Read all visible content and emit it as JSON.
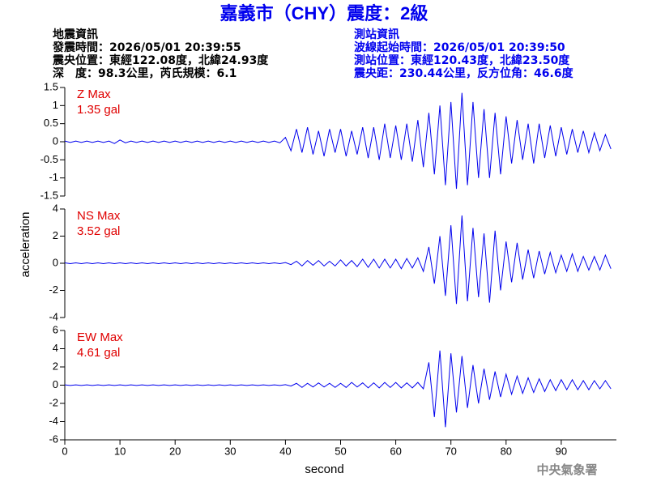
{
  "header": {
    "title": "嘉義市（CHY）震度：2級",
    "left_lines": [
      "地震資訊",
      "發震時間：2026/05/01 20:39:55",
      "震央位置：東經122.08度，北緯24.93度",
      "深　度：98.3公里，芮氏規模：6.1"
    ],
    "right_lines": [
      "測站資訊",
      "波線起始時間：2026/05/01 20:39:50",
      "測站位置：東經120.43度，北緯23.50度",
      "震央距：230.44公里，反方位角：46.6度"
    ]
  },
  "y_label": "acceleration",
  "footer": "中央氣象署",
  "chart_data": [
    {
      "type": "line",
      "annotations": [
        "Z Max",
        "1.35 gal"
      ],
      "xlim": [
        0,
        100
      ],
      "ylim": [
        -1.5,
        1.5
      ],
      "yticks": [
        1.5,
        1,
        0.5,
        0,
        -0.5,
        -1,
        -1.5
      ],
      "x": [
        0,
        1,
        2,
        3,
        4,
        5,
        6,
        7,
        8,
        9,
        10,
        11,
        12,
        13,
        14,
        15,
        16,
        17,
        18,
        19,
        20,
        21,
        22,
        23,
        24,
        25,
        26,
        27,
        28,
        29,
        30,
        31,
        32,
        33,
        34,
        35,
        36,
        37,
        38,
        39,
        40,
        41,
        42,
        43,
        44,
        45,
        46,
        47,
        48,
        49,
        50,
        51,
        52,
        53,
        54,
        55,
        56,
        57,
        58,
        59,
        60,
        61,
        62,
        63,
        64,
        65,
        66,
        67,
        68,
        69,
        70,
        71,
        72,
        73,
        74,
        75,
        76,
        77,
        78,
        79,
        80,
        81,
        82,
        83,
        84,
        85,
        86,
        87,
        88,
        89,
        90,
        91,
        92,
        93,
        94,
        95,
        96,
        97,
        98,
        99
      ],
      "series": [
        {
          "color": "#0000ee",
          "values": [
            0.02,
            -0.02,
            0.02,
            -0.02,
            0.02,
            -0.02,
            0.02,
            -0.02,
            0.02,
            -0.05,
            0.05,
            -0.03,
            0.02,
            -0.02,
            0.02,
            -0.02,
            0.02,
            -0.02,
            0.02,
            -0.02,
            0.02,
            -0.02,
            0.02,
            -0.02,
            0.02,
            -0.02,
            0.02,
            -0.02,
            0.02,
            -0.02,
            0.02,
            -0.02,
            0.02,
            -0.02,
            0.02,
            -0.02,
            0.02,
            -0.02,
            0.02,
            -0.03,
            0.12,
            -0.25,
            0.35,
            -0.3,
            0.4,
            -0.35,
            0.3,
            -0.4,
            0.35,
            -0.3,
            0.35,
            -0.4,
            0.3,
            -0.35,
            0.4,
            -0.45,
            0.4,
            -0.5,
            0.5,
            -0.45,
            0.45,
            -0.5,
            0.5,
            -0.55,
            0.6,
            -0.7,
            0.8,
            -0.9,
            1.0,
            -1.2,
            1.1,
            -1.3,
            1.35,
            -1.2,
            1.1,
            -1.0,
            0.9,
            -1.0,
            0.8,
            -0.9,
            0.7,
            -0.6,
            0.6,
            -0.5,
            0.5,
            -0.6,
            0.5,
            -0.45,
            0.45,
            -0.4,
            0.4,
            -0.35,
            0.35,
            -0.3,
            0.3,
            -0.3,
            0.25,
            -0.25,
            0.2,
            -0.2
          ]
        }
      ]
    },
    {
      "type": "line",
      "annotations": [
        "NS Max",
        "3.52 gal"
      ],
      "xlim": [
        0,
        100
      ],
      "ylim": [
        -4,
        4
      ],
      "yticks": [
        4,
        2,
        0,
        -2,
        -4
      ],
      "x": [
        0,
        1,
        2,
        3,
        4,
        5,
        6,
        7,
        8,
        9,
        10,
        11,
        12,
        13,
        14,
        15,
        16,
        17,
        18,
        19,
        20,
        21,
        22,
        23,
        24,
        25,
        26,
        27,
        28,
        29,
        30,
        31,
        32,
        33,
        34,
        35,
        36,
        37,
        38,
        39,
        40,
        41,
        42,
        43,
        44,
        45,
        46,
        47,
        48,
        49,
        50,
        51,
        52,
        53,
        54,
        55,
        56,
        57,
        58,
        59,
        60,
        61,
        62,
        63,
        64,
        65,
        66,
        67,
        68,
        69,
        70,
        71,
        72,
        73,
        74,
        75,
        76,
        77,
        78,
        79,
        80,
        81,
        82,
        83,
        84,
        85,
        86,
        87,
        88,
        89,
        90,
        91,
        92,
        93,
        94,
        95,
        96,
        97,
        98,
        99
      ],
      "series": [
        {
          "color": "#0000ee",
          "values": [
            0.03,
            -0.03,
            0.03,
            -0.03,
            0.03,
            -0.03,
            0.03,
            -0.03,
            0.03,
            -0.03,
            0.03,
            -0.03,
            0.03,
            -0.03,
            0.03,
            -0.03,
            0.03,
            -0.03,
            0.03,
            -0.03,
            0.03,
            -0.03,
            0.03,
            -0.03,
            0.03,
            -0.03,
            0.03,
            -0.03,
            0.03,
            -0.03,
            0.03,
            -0.03,
            0.03,
            -0.03,
            0.03,
            -0.03,
            0.03,
            -0.03,
            0.03,
            -0.03,
            0.05,
            -0.1,
            0.15,
            -0.2,
            0.2,
            -0.15,
            0.2,
            -0.2,
            0.15,
            -0.2,
            0.25,
            -0.2,
            0.2,
            -0.25,
            0.3,
            -0.3,
            0.3,
            -0.35,
            0.3,
            -0.35,
            0.3,
            -0.4,
            0.35,
            -0.35,
            0.4,
            -0.6,
            1.2,
            -1.5,
            2.0,
            -2.4,
            2.8,
            -3.0,
            3.52,
            -2.8,
            2.6,
            -2.5,
            2.2,
            -2.9,
            2.4,
            -2.0,
            1.6,
            -1.4,
            1.5,
            -1.2,
            1.0,
            -1.1,
            0.9,
            -0.8,
            0.8,
            -0.7,
            0.6,
            -0.6,
            0.7,
            -0.6,
            0.5,
            -0.5,
            0.5,
            -0.5,
            0.6,
            -0.4
          ]
        }
      ]
    },
    {
      "type": "line",
      "annotations": [
        "EW Max",
        "4.61 gal"
      ],
      "xlim": [
        0,
        100
      ],
      "ylim": [
        -6,
        6
      ],
      "yticks": [
        6,
        4,
        2,
        0,
        -2,
        -4,
        -6
      ],
      "xticks": [
        0,
        10,
        20,
        30,
        40,
        50,
        60,
        70,
        80,
        90
      ],
      "x_label": "second",
      "x": [
        0,
        1,
        2,
        3,
        4,
        5,
        6,
        7,
        8,
        9,
        10,
        11,
        12,
        13,
        14,
        15,
        16,
        17,
        18,
        19,
        20,
        21,
        22,
        23,
        24,
        25,
        26,
        27,
        28,
        29,
        30,
        31,
        32,
        33,
        34,
        35,
        36,
        37,
        38,
        39,
        40,
        41,
        42,
        43,
        44,
        45,
        46,
        47,
        48,
        49,
        50,
        51,
        52,
        53,
        54,
        55,
        56,
        57,
        58,
        59,
        60,
        61,
        62,
        63,
        64,
        65,
        66,
        67,
        68,
        69,
        70,
        71,
        72,
        73,
        74,
        75,
        76,
        77,
        78,
        79,
        80,
        81,
        82,
        83,
        84,
        85,
        86,
        87,
        88,
        89,
        90,
        91,
        92,
        93,
        94,
        95,
        96,
        97,
        98,
        99
      ],
      "series": [
        {
          "color": "#0000ee",
          "values": [
            0.03,
            -0.03,
            0.03,
            -0.03,
            0.03,
            -0.03,
            0.03,
            -0.03,
            0.03,
            -0.03,
            0.03,
            -0.03,
            0.03,
            -0.03,
            0.03,
            -0.03,
            0.03,
            -0.03,
            0.03,
            -0.03,
            0.03,
            -0.03,
            0.03,
            -0.03,
            0.03,
            -0.03,
            0.03,
            -0.03,
            0.03,
            -0.03,
            0.03,
            -0.03,
            0.03,
            -0.03,
            0.03,
            -0.03,
            0.03,
            -0.03,
            0.03,
            -0.03,
            0.05,
            -0.1,
            0.2,
            -0.25,
            0.2,
            -0.2,
            0.25,
            -0.2,
            0.2,
            -0.25,
            0.2,
            -0.25,
            0.3,
            -0.2,
            0.25,
            -0.3,
            0.25,
            -0.3,
            0.3,
            -0.25,
            0.3,
            -0.3,
            0.25,
            -0.3,
            0.3,
            -0.4,
            2.5,
            -3.5,
            3.8,
            -4.61,
            3.5,
            -3.0,
            3.2,
            -2.5,
            2.2,
            -2.0,
            1.8,
            -1.6,
            1.5,
            -1.3,
            1.2,
            -1.0,
            1.0,
            -0.9,
            0.8,
            -0.8,
            0.7,
            -0.7,
            0.6,
            -0.6,
            0.6,
            -0.5,
            0.6,
            -0.5,
            0.5,
            -0.5,
            0.5,
            -0.4,
            0.5,
            -0.4
          ]
        }
      ]
    }
  ]
}
